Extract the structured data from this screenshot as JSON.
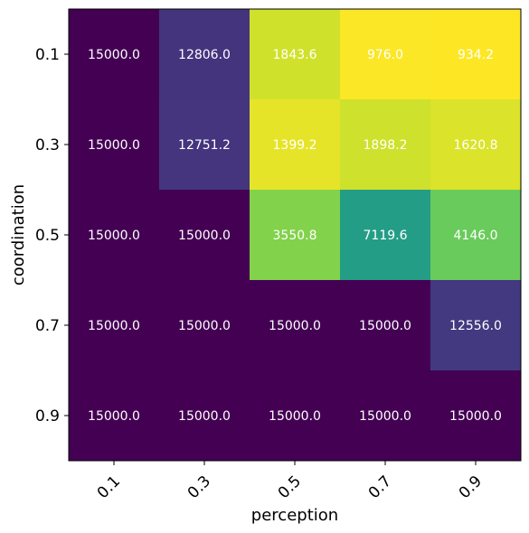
{
  "chart_data": {
    "type": "heatmap",
    "xlabel": "perception",
    "ylabel": "coordination",
    "x_categories": [
      "0.1",
      "0.3",
      "0.5",
      "0.7",
      "0.9"
    ],
    "y_categories": [
      "0.1",
      "0.3",
      "0.5",
      "0.7",
      "0.9"
    ],
    "values": [
      [
        15000.0,
        12806.0,
        1843.6,
        976.0,
        934.2
      ],
      [
        15000.0,
        12751.2,
        1399.2,
        1898.2,
        1620.8
      ],
      [
        15000.0,
        15000.0,
        3550.8,
        7119.6,
        4146.0
      ],
      [
        15000.0,
        15000.0,
        15000.0,
        15000.0,
        12556.0
      ],
      [
        15000.0,
        15000.0,
        15000.0,
        15000.0,
        15000.0
      ]
    ],
    "value_labels": [
      [
        "15000.0",
        "12806.0",
        "1843.6",
        "976.0",
        "934.2"
      ],
      [
        "15000.0",
        "12751.2",
        "1399.2",
        "1898.2",
        "1620.8"
      ],
      [
        "15000.0",
        "15000.0",
        "3550.8",
        "7119.6",
        "4146.0"
      ],
      [
        "15000.0",
        "15000.0",
        "15000.0",
        "15000.0",
        "12556.0"
      ],
      [
        "15000.0",
        "15000.0",
        "15000.0",
        "15000.0",
        "15000.0"
      ]
    ],
    "colormap": "viridis",
    "color_reversed": true,
    "vmin": 934.2,
    "vmax": 15000.0,
    "grid": false,
    "legend": "none"
  }
}
